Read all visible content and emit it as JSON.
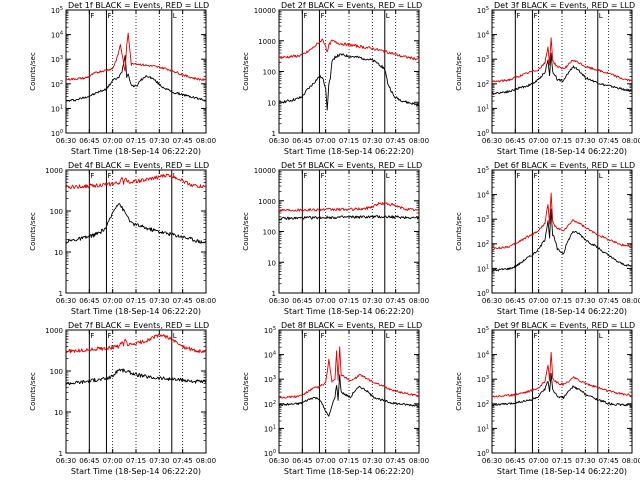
{
  "shared": {
    "title_suffix": " BLACK = Events, RED = LLD",
    "xlabel": "Start Time (18-Sep-14 06:22:20)",
    "ylabel": "Counts/sec",
    "x_ticks": [
      "06:30",
      "06:45",
      "07:00",
      "07:15",
      "07:30",
      "07:45",
      "08:00"
    ],
    "x_range_minutes": [
      0,
      90
    ],
    "series": [
      {
        "name": "Events",
        "color": "#000000"
      },
      {
        "name": "LLD",
        "color": "#e00000"
      }
    ],
    "vlines_minutes": [
      15,
      26,
      68
    ],
    "markers": [
      "F",
      "F",
      "L"
    ]
  },
  "chart_data": [
    {
      "type": "line",
      "title": "Det 1f",
      "ylog": true,
      "ylim_exp": [
        0,
        5
      ],
      "tick_style": "exp",
      "series": [
        {
          "name": "Events",
          "x": [
            0,
            6,
            12,
            15,
            18,
            22,
            26,
            30,
            34,
            36,
            38,
            39,
            40,
            42,
            44,
            46,
            48,
            52,
            56,
            60,
            62,
            66,
            70,
            74,
            78,
            82,
            86,
            90
          ],
          "y": [
            20,
            22,
            28,
            32,
            38,
            50,
            60,
            140,
            180,
            320,
            1500,
            200,
            250,
            90,
            80,
            90,
            140,
            210,
            160,
            95,
            75,
            55,
            42,
            38,
            32,
            28,
            24,
            22
          ]
        },
        {
          "name": "LLD",
          "x": [
            0,
            6,
            12,
            15,
            18,
            22,
            26,
            30,
            33,
            35,
            37,
            38,
            39,
            40,
            42,
            44,
            46,
            50,
            56,
            60,
            64,
            68,
            72,
            78,
            84,
            90
          ],
          "y": [
            150,
            160,
            170,
            200,
            260,
            320,
            360,
            420,
            1200,
            4000,
            700,
            300,
            3500,
            12000,
            600,
            700,
            650,
            580,
            520,
            470,
            420,
            350,
            280,
            200,
            160,
            140
          ]
        }
      ]
    },
    {
      "type": "line",
      "title": "Det 2f",
      "ylog": true,
      "ylim_exp": [
        0,
        4
      ],
      "tick_style": "plain",
      "ytick_labels": [
        "1",
        "10",
        "100",
        "1000",
        "10000"
      ],
      "series": [
        {
          "name": "Events",
          "x": [
            0,
            6,
            12,
            15,
            18,
            22,
            26,
            28,
            30,
            31,
            32,
            33,
            34,
            36,
            40,
            44,
            48,
            52,
            56,
            60,
            64,
            68,
            70,
            74,
            78,
            82,
            86,
            90
          ],
          "y": [
            10,
            11,
            13,
            15,
            25,
            40,
            70,
            60,
            30,
            6,
            40,
            60,
            200,
            300,
            350,
            320,
            300,
            280,
            260,
            230,
            180,
            120,
            40,
            15,
            12,
            10,
            9,
            8
          ]
        },
        {
          "name": "LLD",
          "x": [
            0,
            6,
            12,
            15,
            18,
            22,
            26,
            28,
            30,
            31,
            32,
            34,
            36,
            40,
            44,
            48,
            52,
            56,
            60,
            64,
            68,
            72,
            78,
            84,
            90
          ],
          "y": [
            280,
            300,
            320,
            350,
            420,
            600,
            900,
            1100,
            700,
            400,
            700,
            1000,
            900,
            800,
            750,
            700,
            650,
            600,
            560,
            500,
            450,
            400,
            320,
            280,
            250
          ]
        }
      ]
    },
    {
      "type": "line",
      "title": "Det 3f",
      "ylog": true,
      "ylim_exp": [
        0,
        5
      ],
      "tick_style": "exp",
      "series": [
        {
          "name": "Events",
          "x": [
            0,
            6,
            12,
            15,
            18,
            22,
            26,
            30,
            34,
            36,
            37,
            38,
            39,
            40,
            42,
            46,
            48,
            52,
            56,
            60,
            64,
            68,
            72,
            76,
            80,
            84,
            90
          ],
          "y": [
            40,
            45,
            50,
            60,
            70,
            80,
            100,
            150,
            300,
            900,
            200,
            1800,
            300,
            260,
            150,
            130,
            220,
            500,
            350,
            180,
            140,
            110,
            90,
            80,
            70,
            60,
            50
          ]
        },
        {
          "name": "LLD",
          "x": [
            0,
            6,
            12,
            15,
            18,
            22,
            26,
            30,
            34,
            36,
            37,
            38,
            39,
            40,
            42,
            46,
            48,
            52,
            56,
            60,
            64,
            68,
            72,
            76,
            80,
            84,
            90
          ],
          "y": [
            120,
            130,
            150,
            180,
            210,
            260,
            320,
            380,
            700,
            3000,
            600,
            8000,
            900,
            700,
            500,
            420,
            500,
            900,
            700,
            500,
            420,
            360,
            300,
            250,
            200,
            160,
            130
          ]
        }
      ]
    },
    {
      "type": "line",
      "title": "Det 4f",
      "ylog": true,
      "ylim_exp": [
        0,
        3
      ],
      "tick_style": "plain",
      "ytick_labels": [
        "1",
        "10",
        "100",
        "1000"
      ],
      "series": [
        {
          "name": "Events",
          "x": [
            0,
            6,
            12,
            15,
            18,
            22,
            26,
            28,
            30,
            32,
            34,
            36,
            38,
            40,
            42,
            46,
            50,
            54,
            58,
            62,
            66,
            70,
            74,
            78,
            82,
            86,
            90
          ],
          "y": [
            18,
            20,
            22,
            24,
            26,
            30,
            40,
            60,
            90,
            130,
            160,
            120,
            90,
            70,
            50,
            45,
            40,
            36,
            33,
            30,
            28,
            26,
            24,
            22,
            20,
            18,
            17
          ]
        },
        {
          "name": "LLD",
          "x": [
            0,
            6,
            12,
            15,
            18,
            22,
            26,
            30,
            34,
            36,
            37,
            38,
            40,
            42,
            46,
            50,
            54,
            58,
            62,
            66,
            70,
            74,
            78,
            82,
            86,
            90
          ],
          "y": [
            380,
            390,
            400,
            410,
            420,
            430,
            440,
            460,
            480,
            600,
            480,
            650,
            520,
            520,
            540,
            560,
            600,
            650,
            720,
            750,
            680,
            580,
            480,
            420,
            400,
            390
          ]
        }
      ]
    },
    {
      "type": "line",
      "title": "Det 5f",
      "ylog": true,
      "ylim_exp": [
        0,
        4
      ],
      "tick_style": "plain",
      "ytick_labels": [
        "1",
        "10",
        "100",
        "1000",
        "10000"
      ],
      "series": [
        {
          "name": "Events",
          "x": [
            0,
            10,
            20,
            30,
            40,
            50,
            60,
            70,
            80,
            90
          ],
          "y": [
            260,
            270,
            280,
            285,
            290,
            295,
            300,
            300,
            290,
            280
          ]
        },
        {
          "name": "LLD",
          "x": [
            0,
            10,
            20,
            30,
            40,
            50,
            56,
            60,
            64,
            68,
            72,
            76,
            80,
            84,
            88,
            90
          ],
          "y": [
            500,
            505,
            510,
            515,
            520,
            530,
            560,
            650,
            800,
            820,
            760,
            650,
            560,
            520,
            500,
            495
          ]
        }
      ]
    },
    {
      "type": "line",
      "title": "Det 6f",
      "ylog": true,
      "ylim_exp": [
        0,
        5
      ],
      "tick_style": "exp",
      "series": [
        {
          "name": "Events",
          "x": [
            0,
            6,
            12,
            15,
            18,
            22,
            26,
            30,
            34,
            36,
            37,
            38,
            39,
            40,
            42,
            46,
            48,
            52,
            56,
            60,
            64,
            68,
            72,
            76,
            80,
            84,
            90
          ],
          "y": [
            8,
            9,
            10,
            12,
            16,
            25,
            35,
            60,
            150,
            900,
            180,
            2500,
            220,
            180,
            60,
            40,
            100,
            320,
            260,
            150,
            100,
            70,
            45,
            30,
            20,
            15,
            12
          ]
        },
        {
          "name": "LLD",
          "x": [
            0,
            6,
            12,
            15,
            18,
            22,
            26,
            30,
            34,
            36,
            37,
            38,
            39,
            40,
            42,
            46,
            48,
            52,
            56,
            60,
            64,
            68,
            72,
            76,
            80,
            84,
            90
          ],
          "y": [
            60,
            70,
            80,
            100,
            130,
            180,
            240,
            350,
            700,
            4000,
            600,
            12000,
            800,
            600,
            400,
            350,
            450,
            900,
            700,
            450,
            320,
            240,
            180,
            140,
            110,
            90,
            80
          ]
        }
      ]
    },
    {
      "type": "line",
      "title": "Det 7f",
      "ylog": true,
      "ylim_exp": [
        0,
        3
      ],
      "tick_style": "plain",
      "ytick_labels": [
        "1",
        "10",
        "100",
        "1000"
      ],
      "series": [
        {
          "name": "Events",
          "x": [
            0,
            6,
            12,
            15,
            18,
            22,
            26,
            30,
            34,
            38,
            42,
            46,
            50,
            54,
            58,
            62,
            66,
            70,
            74,
            78,
            82,
            86,
            90
          ],
          "y": [
            50,
            52,
            55,
            58,
            60,
            62,
            65,
            75,
            110,
            100,
            90,
            80,
            75,
            70,
            68,
            66,
            64,
            62,
            60,
            58,
            56,
            55,
            54
          ]
        },
        {
          "name": "LLD",
          "x": [
            0,
            6,
            12,
            15,
            18,
            22,
            26,
            30,
            34,
            36,
            37,
            38,
            40,
            42,
            46,
            50,
            54,
            58,
            62,
            66,
            70,
            74,
            78,
            82,
            86,
            90
          ],
          "y": [
            300,
            310,
            320,
            330,
            340,
            350,
            360,
            380,
            400,
            500,
            400,
            600,
            420,
            440,
            480,
            520,
            600,
            700,
            750,
            650,
            520,
            420,
            360,
            320,
            300,
            290
          ]
        }
      ]
    },
    {
      "type": "line",
      "title": "Det 8f",
      "ylog": true,
      "ylim_exp": [
        0,
        5
      ],
      "tick_style": "exp",
      "series": [
        {
          "name": "Events",
          "x": [
            0,
            6,
            12,
            15,
            18,
            22,
            26,
            30,
            32,
            34,
            36,
            37,
            38,
            39,
            40,
            42,
            46,
            48,
            52,
            56,
            60,
            64,
            68,
            72,
            76,
            80,
            84,
            90
          ],
          "y": [
            90,
            95,
            100,
            110,
            140,
            180,
            160,
            50,
            30,
            80,
            200,
            600,
            150,
            1500,
            300,
            250,
            180,
            300,
            500,
            350,
            200,
            160,
            130,
            110,
            100,
            95,
            90,
            85
          ]
        },
        {
          "name": "LLD",
          "x": [
            0,
            6,
            12,
            15,
            18,
            22,
            26,
            30,
            32,
            34,
            36,
            37,
            38,
            39,
            40,
            42,
            46,
            48,
            52,
            56,
            60,
            64,
            68,
            72,
            76,
            80,
            84,
            90
          ],
          "y": [
            180,
            190,
            200,
            220,
            300,
            420,
            500,
            700,
            6000,
            800,
            900,
            15000,
            1000,
            20000,
            1500,
            1200,
            900,
            1000,
            1500,
            1100,
            800,
            600,
            480,
            380,
            320,
            280,
            240,
            220
          ]
        }
      ]
    },
    {
      "type": "line",
      "title": "Det 9f",
      "ylog": true,
      "ylim_exp": [
        0,
        5
      ],
      "tick_style": "exp",
      "series": [
        {
          "name": "Events",
          "x": [
            0,
            6,
            12,
            15,
            18,
            22,
            26,
            30,
            34,
            36,
            37,
            38,
            39,
            40,
            42,
            46,
            48,
            52,
            56,
            60,
            64,
            68,
            72,
            76,
            80,
            84,
            90
          ],
          "y": [
            90,
            95,
            100,
            110,
            120,
            130,
            150,
            200,
            400,
            900,
            300,
            1600,
            350,
            300,
            200,
            180,
            250,
            500,
            380,
            250,
            190,
            150,
            120,
            100,
            95,
            90,
            85
          ]
        },
        {
          "name": "LLD",
          "x": [
            0,
            6,
            12,
            15,
            18,
            22,
            26,
            30,
            34,
            36,
            37,
            38,
            39,
            40,
            42,
            46,
            48,
            52,
            56,
            60,
            64,
            68,
            72,
            76,
            80,
            84,
            90
          ],
          "y": [
            200,
            210,
            220,
            240,
            270,
            300,
            360,
            450,
            800,
            4000,
            900,
            12000,
            1100,
            900,
            700,
            600,
            700,
            1200,
            900,
            700,
            550,
            450,
            380,
            320,
            280,
            250,
            230
          ]
        }
      ]
    }
  ]
}
